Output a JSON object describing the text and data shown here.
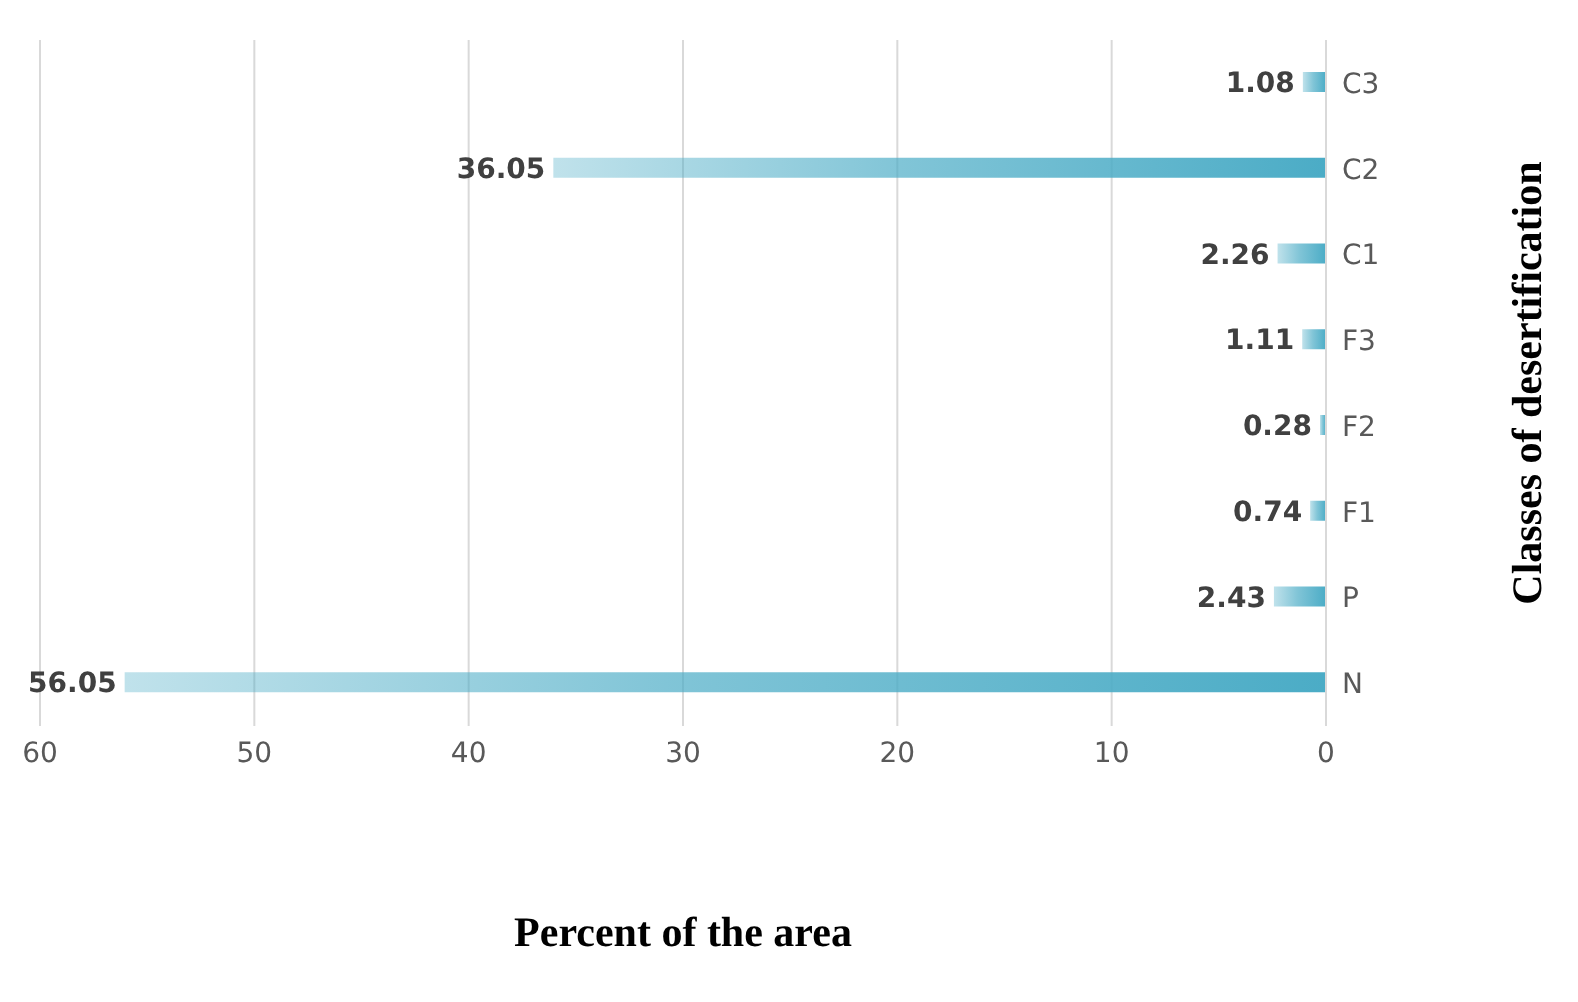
{
  "chart_data": {
    "type": "bar",
    "orientation": "horizontal",
    "xlabel": "Percent of the area",
    "ylabel": "Classes of desertification",
    "categories": [
      "C3",
      "C2",
      "C1",
      "F3",
      "F2",
      "F1",
      "P",
      "N"
    ],
    "values": [
      1.08,
      36.05,
      2.26,
      1.11,
      0.28,
      0.74,
      2.43,
      56.05
    ],
    "color": "#4bacc6",
    "xlim": [
      60,
      0
    ],
    "xticks": [
      60,
      50,
      40,
      30,
      20,
      10,
      0
    ],
    "grid": "x",
    "data_labels": true
  }
}
